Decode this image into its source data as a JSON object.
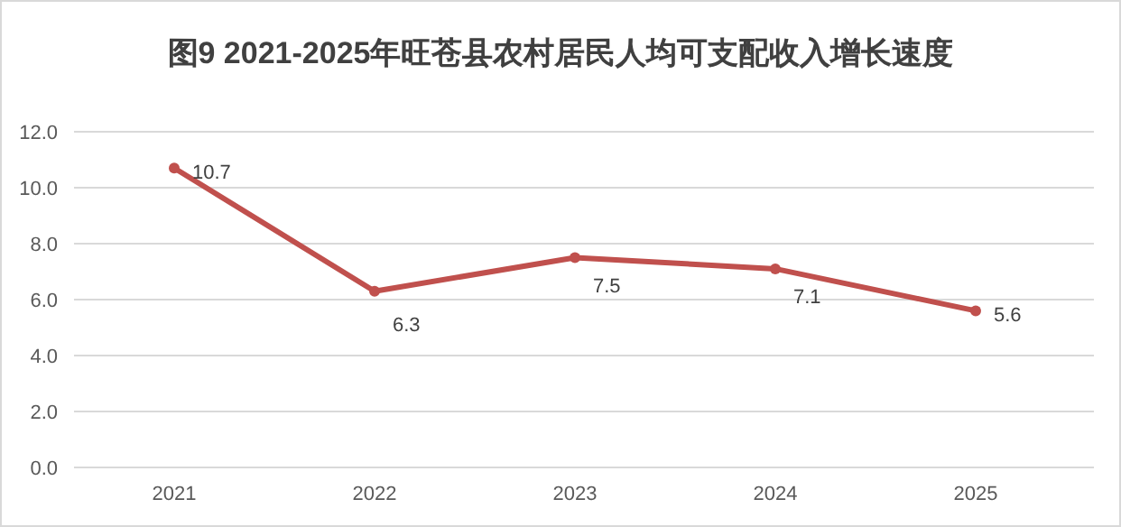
{
  "chart_data": {
    "type": "line",
    "title": "图9   2021-2025年旺苍县农村居民人均可支配收入增长速度",
    "categories": [
      "2021",
      "2022",
      "2023",
      "2024",
      "2025"
    ],
    "series": [
      {
        "color": "#c0504d",
        "values": [
          10.7,
          6.3,
          7.5,
          7.1,
          5.6
        ]
      }
    ],
    "ylim": [
      0,
      12
    ],
    "yticks": [
      {
        "value": 0,
        "label": "0.0"
      },
      {
        "value": 2,
        "label": "2.0"
      },
      {
        "value": 4,
        "label": "4.0"
      },
      {
        "value": 6,
        "label": "6.0"
      },
      {
        "value": 8,
        "label": "8.0"
      },
      {
        "value": 10,
        "label": "10.0"
      },
      {
        "value": 12,
        "label": "12.0"
      }
    ],
    "grid": "y",
    "marker": "circle",
    "line_style": "solid",
    "data_labels": true
  }
}
